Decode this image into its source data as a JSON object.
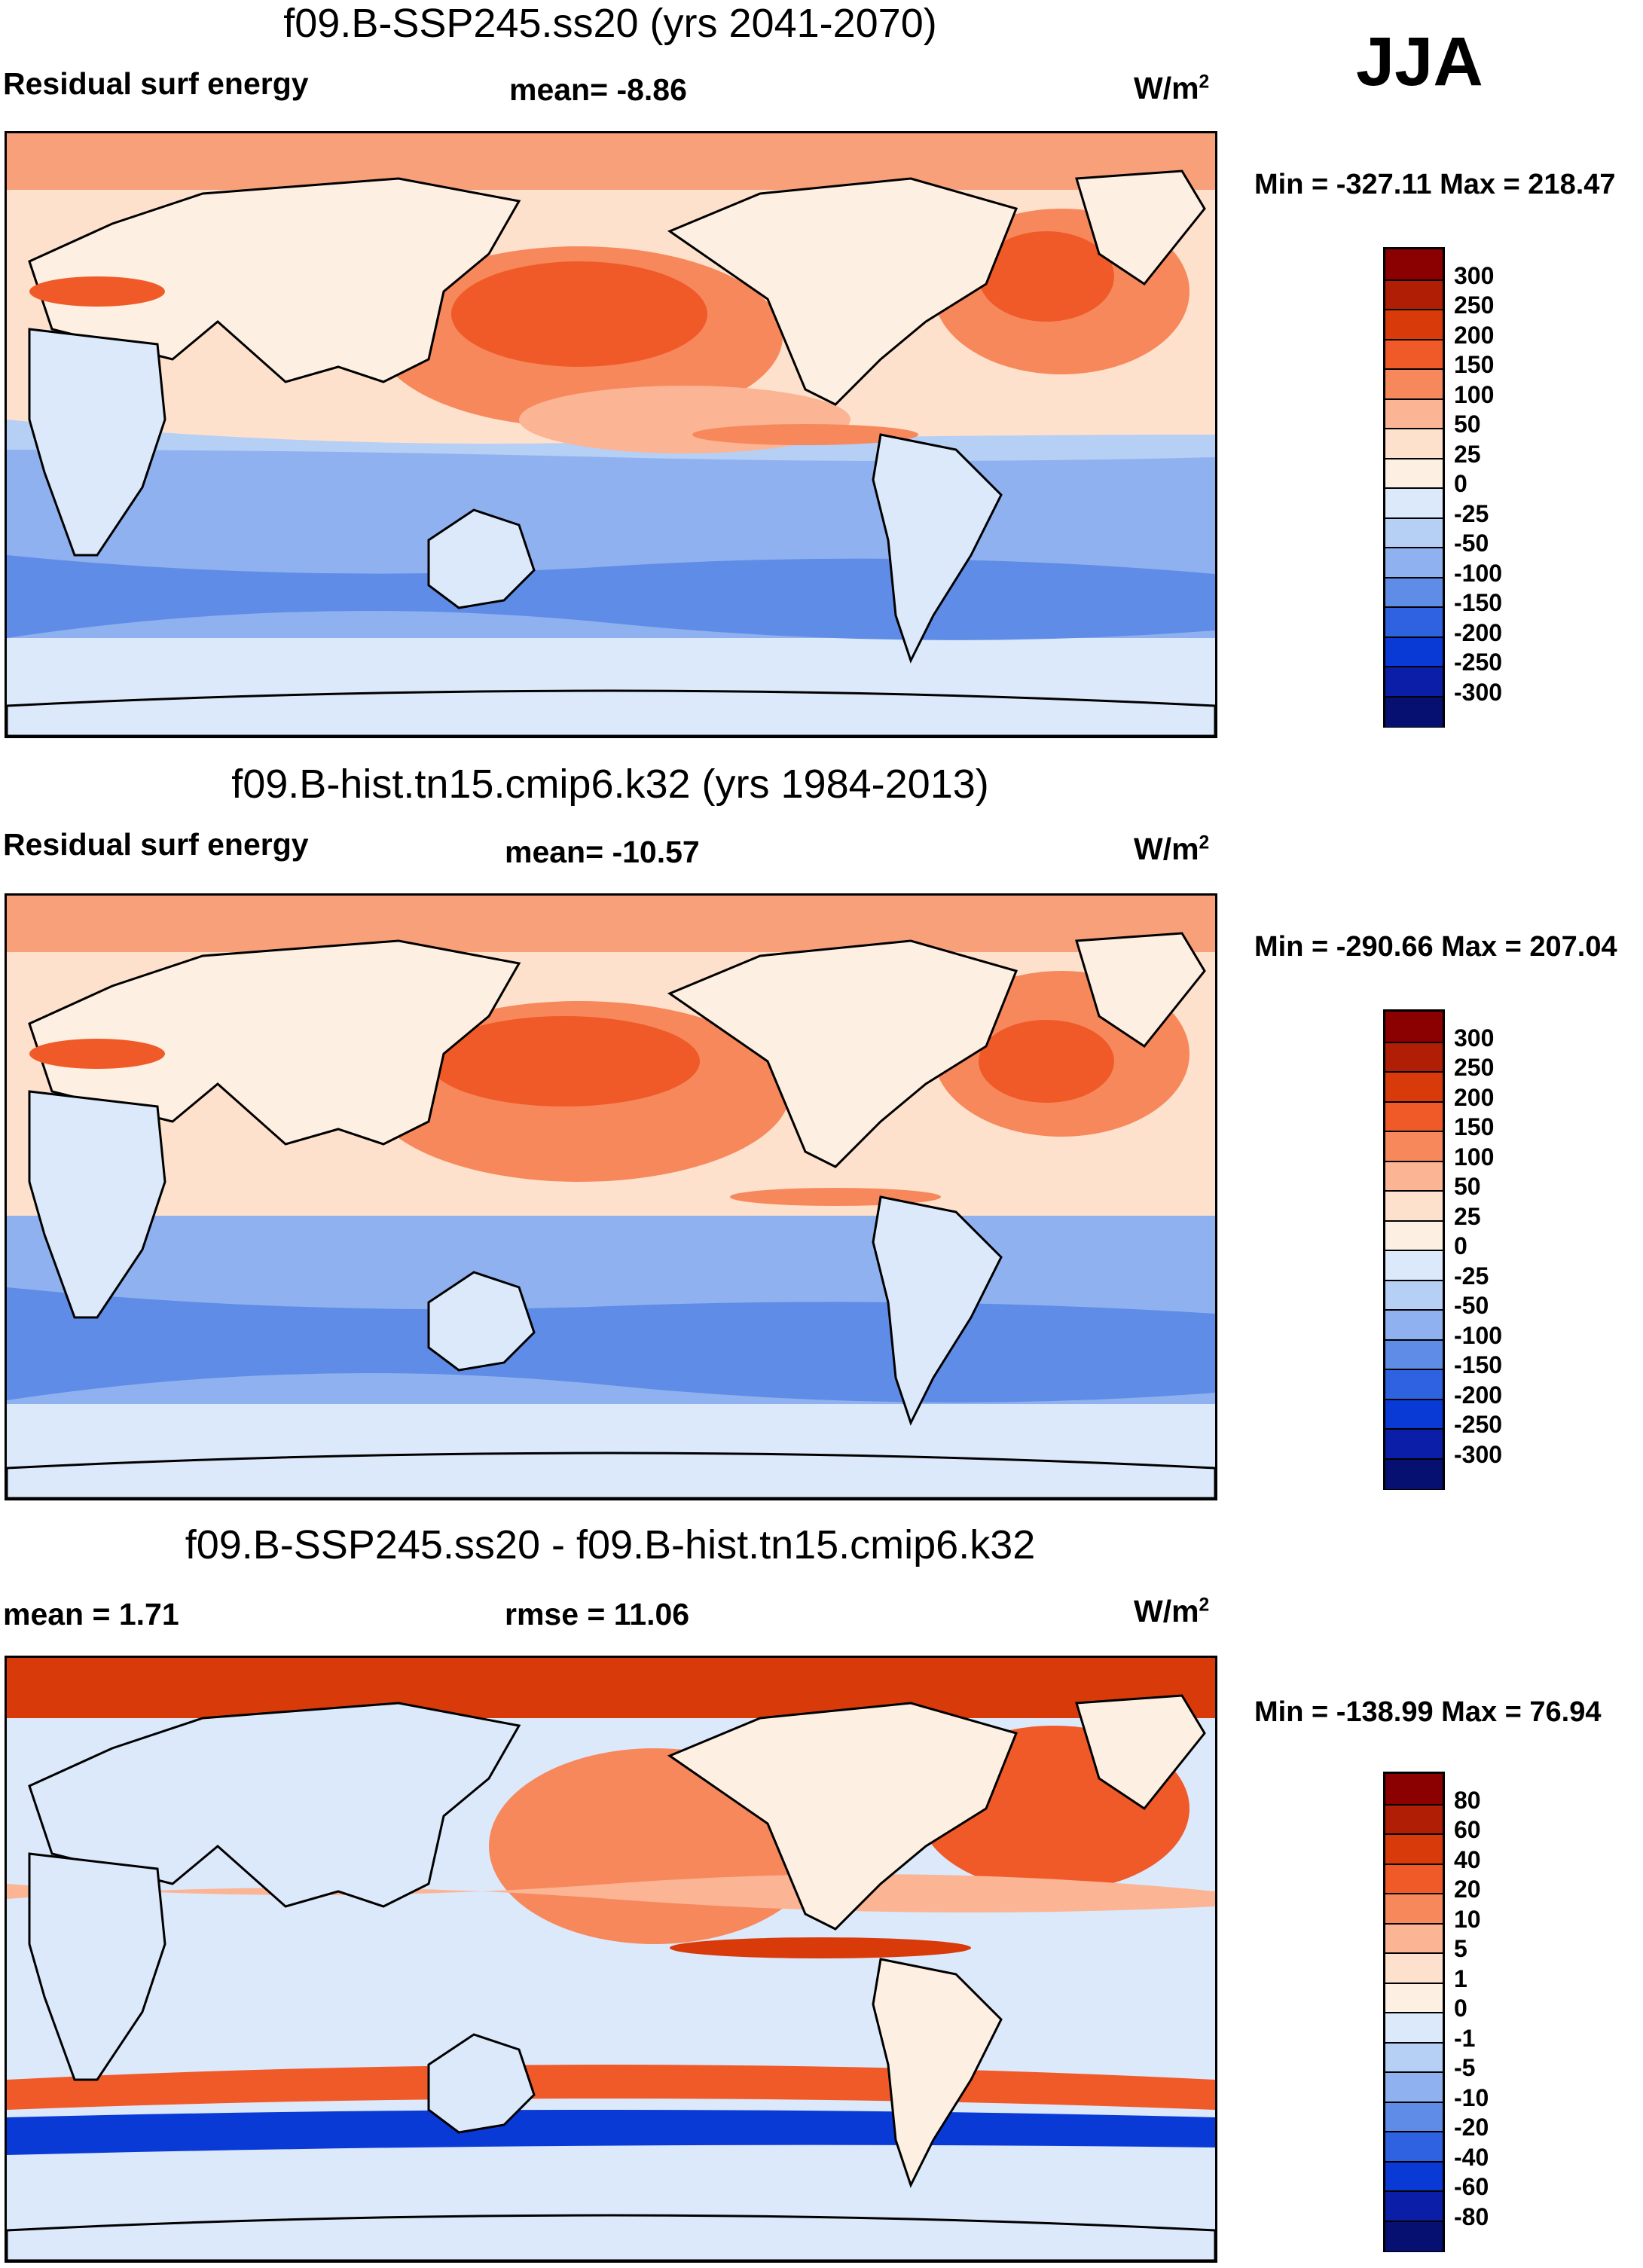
{
  "season": "JJA",
  "panels": [
    {
      "title": "f09.B-SSP245.ss20 (yrs 2041-2070)",
      "left_label": "Residual surf energy",
      "stat1": "mean=  -8.86",
      "stat2": "",
      "units": "W/m",
      "units_sup": "2",
      "minmax": "Min = -327.11 Max = 218.47",
      "colorbar_labels": [
        "300",
        "250",
        "200",
        "150",
        "100",
        "50",
        "25",
        "0",
        "-25",
        "-50",
        "-100",
        "-150",
        "-200",
        "-250",
        "-300"
      ],
      "colorbar_colors": [
        "#8b0000",
        "#b01f05",
        "#d93a0a",
        "#f05a28",
        "#f7885c",
        "#fbb494",
        "#fde1cc",
        "#fdf0e2",
        "#dbe9fb",
        "#b6cff5",
        "#8fb1ef",
        "#5f8ce6",
        "#2f62e0",
        "#0a3ad6",
        "#0a1ea8",
        "#061070"
      ]
    },
    {
      "title": "f09.B-hist.tn15.cmip6.k32 (yrs 1984-2013)",
      "left_label": "Residual surf energy",
      "stat1": "mean= -10.57",
      "stat2": "",
      "units": "W/m",
      "units_sup": "2",
      "minmax": "Min = -290.66 Max = 207.04",
      "colorbar_labels": [
        "300",
        "250",
        "200",
        "150",
        "100",
        "50",
        "25",
        "0",
        "-25",
        "-50",
        "-100",
        "-150",
        "-200",
        "-250",
        "-300"
      ],
      "colorbar_colors": [
        "#8b0000",
        "#b01f05",
        "#d93a0a",
        "#f05a28",
        "#f7885c",
        "#fbb494",
        "#fde1cc",
        "#fdf0e2",
        "#dbe9fb",
        "#b6cff5",
        "#8fb1ef",
        "#5f8ce6",
        "#2f62e0",
        "#0a3ad6",
        "#0a1ea8",
        "#061070"
      ]
    },
    {
      "title": "f09.B-SSP245.ss20 - f09.B-hist.tn15.cmip6.k32",
      "left_label": "mean =   1.71",
      "stat1": "rmse =  11.06",
      "stat2": "",
      "units": "W/m",
      "units_sup": "2",
      "minmax": "Min = -138.99 Max =  76.94",
      "colorbar_labels": [
        "80",
        "60",
        "40",
        "20",
        "10",
        "5",
        "1",
        "0",
        "-1",
        "-5",
        "-10",
        "-20",
        "-40",
        "-60",
        "-80"
      ],
      "colorbar_colors": [
        "#8b0000",
        "#b01f05",
        "#d93a0a",
        "#f05a28",
        "#f7885c",
        "#fbb494",
        "#fde1cc",
        "#fdf0e2",
        "#dbe9fb",
        "#b6cff5",
        "#8fb1ef",
        "#5f8ce6",
        "#2f62e0",
        "#0a3ad6",
        "#0a1ea8",
        "#061070"
      ]
    }
  ]
}
